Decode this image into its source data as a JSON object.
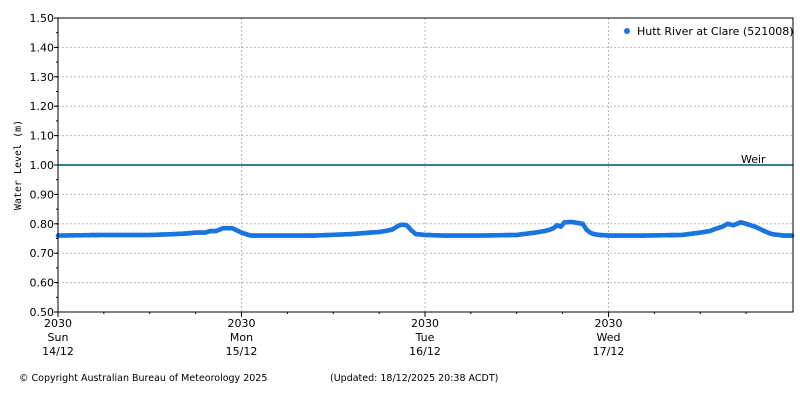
{
  "chart_data": {
    "type": "scatter",
    "ylabel": "Water Level (m)",
    "xlabel": "",
    "ylim": [
      0.5,
      1.5
    ],
    "yticks": [
      "0.50",
      "0.60",
      "0.70",
      "0.80",
      "0.90",
      "1.00",
      "1.10",
      "1.20",
      "1.30",
      "1.40",
      "1.50"
    ],
    "xlim_days": [
      0,
      4
    ],
    "xticks": [
      {
        "year": "2030",
        "day": "Sun",
        "date": "14/12"
      },
      {
        "year": "2030",
        "day": "Mon",
        "date": "15/12"
      },
      {
        "year": "2030",
        "day": "Tue",
        "date": "16/12"
      },
      {
        "year": "2030",
        "day": "Wed",
        "date": "17/12"
      }
    ],
    "grid": true,
    "legend_position": "top-right",
    "series": [
      {
        "name": "Hutt River at Clare (521008)",
        "color": "#1a75e0",
        "x_days": [
          0.0,
          0.25,
          0.5,
          0.6,
          0.7,
          0.75,
          0.8,
          0.83,
          0.86,
          0.9,
          0.95,
          1.0,
          1.05,
          1.1,
          1.2,
          1.4,
          1.6,
          1.7,
          1.75,
          1.78,
          1.82,
          1.86,
          1.88,
          1.9,
          1.93,
          1.95,
          2.0,
          2.1,
          2.3,
          2.5,
          2.6,
          2.65,
          2.68,
          2.7,
          2.72,
          2.74,
          2.76,
          2.8,
          2.86,
          2.88,
          2.9,
          2.92,
          2.95,
          3.0,
          3.2,
          3.4,
          3.5,
          3.55,
          3.58,
          3.62,
          3.65,
          3.68,
          3.72,
          3.75,
          3.8,
          3.85,
          3.88,
          3.9,
          3.93,
          3.95,
          4.0
        ],
        "y": [
          0.76,
          0.762,
          0.762,
          0.764,
          0.767,
          0.77,
          0.77,
          0.775,
          0.775,
          0.785,
          0.785,
          0.77,
          0.76,
          0.76,
          0.76,
          0.76,
          0.765,
          0.77,
          0.772,
          0.775,
          0.78,
          0.795,
          0.797,
          0.795,
          0.775,
          0.765,
          0.762,
          0.76,
          0.76,
          0.762,
          0.77,
          0.775,
          0.78,
          0.785,
          0.795,
          0.79,
          0.805,
          0.806,
          0.8,
          0.78,
          0.77,
          0.765,
          0.762,
          0.76,
          0.76,
          0.762,
          0.77,
          0.775,
          0.782,
          0.79,
          0.8,
          0.795,
          0.805,
          0.8,
          0.79,
          0.775,
          0.767,
          0.764,
          0.762,
          0.76,
          0.76
        ]
      }
    ],
    "reference_lines": [
      {
        "label": "Weir",
        "y": 1.0,
        "color": "#3a7f86"
      }
    ]
  },
  "footer": {
    "copyright": "© Copyright Australian Bureau of Meteorology 2025",
    "updated": "(Updated: 18/12/2025 20:38 ACDT)"
  }
}
